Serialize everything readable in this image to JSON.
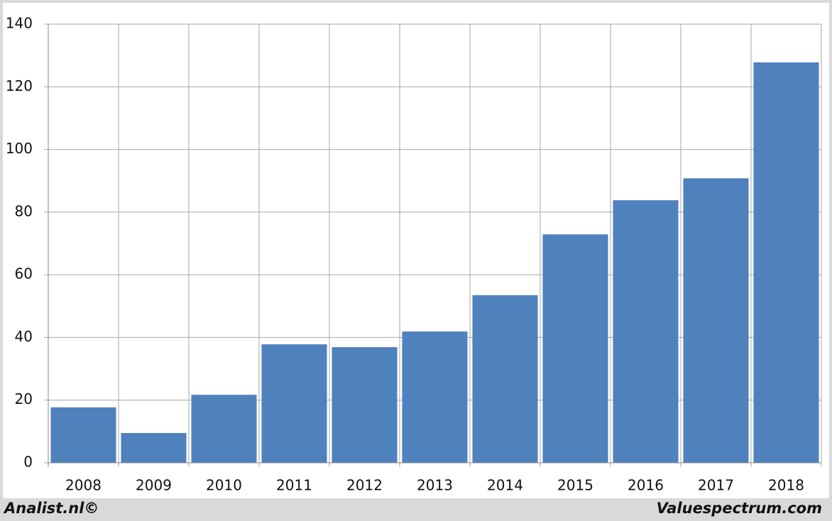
{
  "chart_data": {
    "type": "bar",
    "categories": [
      "2008",
      "2009",
      "2010",
      "2011",
      "2012",
      "2013",
      "2014",
      "2015",
      "2016",
      "2017",
      "2018"
    ],
    "values": [
      17.7,
      9.5,
      21.7,
      37.8,
      36.9,
      41.9,
      53.5,
      72.9,
      83.8,
      90.8,
      127.8
    ],
    "color": "#4f81bd",
    "ylim": [
      0,
      140
    ],
    "yticks": [
      0,
      20,
      40,
      60,
      80,
      100,
      120,
      140
    ],
    "grid": true
  },
  "footer": {
    "left": "Analist.nl©",
    "right": "Valuespectrum.com"
  }
}
